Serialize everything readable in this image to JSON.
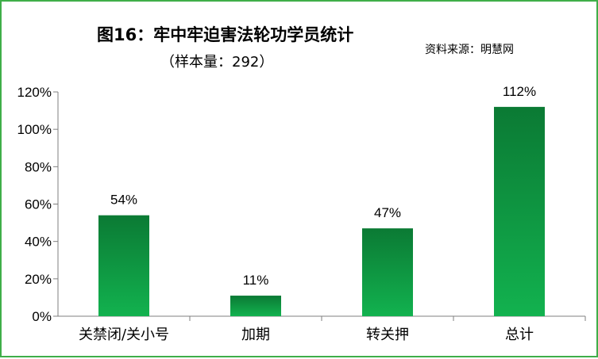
{
  "title": "图16：牢中牢迫害法轮功学员统计",
  "subtitle": "（样本量：292）",
  "source": "资料来源：明慧网",
  "colors": {
    "border": "#3fae49",
    "bar_top": "#0b7a34",
    "bar_bottom": "#12b24f"
  },
  "chart_data": {
    "type": "bar",
    "categories": [
      "关禁闭/关小号",
      "加期",
      "转关押",
      "总计"
    ],
    "values": [
      54,
      11,
      47,
      112
    ],
    "data_labels": [
      "54%",
      "11%",
      "47%",
      "112%"
    ],
    "ylim": [
      0,
      120
    ],
    "yticks": [
      "0%",
      "20%",
      "40%",
      "60%",
      "80%",
      "100%",
      "120%"
    ],
    "grid": false,
    "legend": "none"
  }
}
